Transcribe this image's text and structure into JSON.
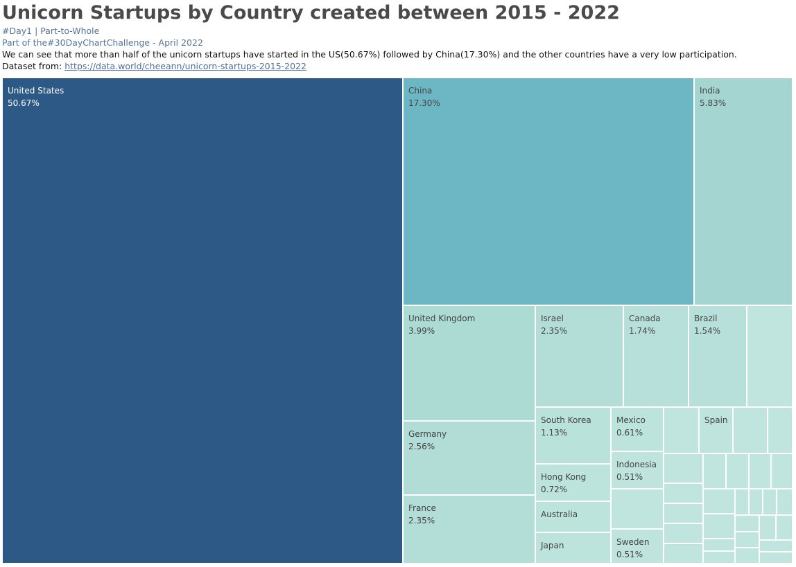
{
  "header": {
    "title": "Unicorn Startups by Country created between 2015 - 2022",
    "line1": "#Day1 | Part-to-Whole",
    "line2": "Part of the#30DayChartChallenge - April 2022",
    "description": "We can see that more than half of the unicorn startups have started in the US(50.67%) followed by China(17.30%) and the other countries have a very low participation.",
    "dataset_prefix": "Dataset from:",
    "dataset_link": "https://data.world/cheeann/unicorn-startups-2015-2022"
  },
  "chart_data": {
    "type": "treemap",
    "title": "Unicorn Startups by Country created between 2015 - 2022",
    "items": [
      {
        "name": "United States",
        "label": "50.67%",
        "value": 50.67,
        "color": "#2d5986"
      },
      {
        "name": "China",
        "label": "17.30%",
        "value": 17.3,
        "color": "#6db6c3"
      },
      {
        "name": "India",
        "label": "5.83%",
        "value": 5.83,
        "color": "#a5d5d1"
      },
      {
        "name": "United Kingdom",
        "label": "3.99%",
        "value": 3.99,
        "color": "#acdbd4"
      },
      {
        "name": "Germany",
        "label": "2.56%",
        "value": 2.56,
        "color": "#b1ddd6"
      },
      {
        "name": "France",
        "label": "2.35%",
        "value": 2.35,
        "color": "#b3ded8"
      },
      {
        "name": "Israel",
        "label": "2.35%",
        "value": 2.35,
        "color": "#b3ded8"
      },
      {
        "name": "Canada",
        "label": "1.74%",
        "value": 1.74,
        "color": "#b6e0d9"
      },
      {
        "name": "Brazil",
        "label": "1.54%",
        "value": 1.54,
        "color": "#b7e0da"
      },
      {
        "name": "South Korea",
        "label": "1.13%",
        "value": 1.13,
        "color": "#b9e2da"
      },
      {
        "name": "Hong Kong",
        "label": "0.72%",
        "value": 0.72,
        "color": "#bce3dc"
      },
      {
        "name": "Australia",
        "label": "",
        "value": null,
        "color": "#bce3dc"
      },
      {
        "name": "Japan",
        "label": "",
        "value": null,
        "color": "#bce3dc"
      },
      {
        "name": "Mexico",
        "label": "0.61%",
        "value": 0.61,
        "color": "#bde4dc"
      },
      {
        "name": "Indonesia",
        "label": "0.51%",
        "value": 0.51,
        "color": "#bee4dd"
      },
      {
        "name": "Sweden",
        "label": "0.51%",
        "value": 0.51,
        "color": "#bee4dd"
      },
      {
        "name": "Spain",
        "label": "",
        "value": null,
        "color": "#bee4dd"
      }
    ],
    "unlabeled_color": "#c0e5de"
  }
}
